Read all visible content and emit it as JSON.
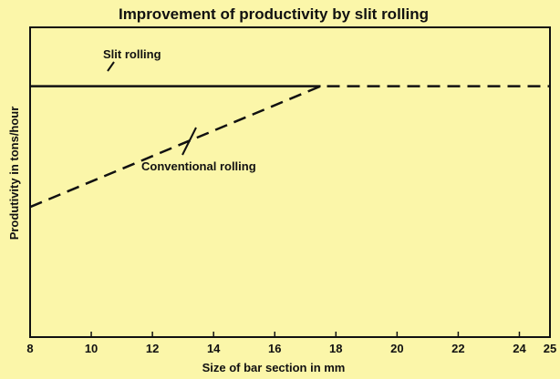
{
  "chart_data": {
    "type": "line",
    "title": "Improvement of productivity by slit rolling",
    "xlabel": "Size of bar section in mm",
    "ylabel": "Produtivity in tons/hour",
    "xlim": [
      8,
      25
    ],
    "ylim": [
      0,
      1
    ],
    "x_ticks": [
      8,
      10,
      12,
      14,
      16,
      18,
      20,
      22,
      24,
      25
    ],
    "y_ticks": [],
    "grid": false,
    "legend": "none",
    "series": [
      {
        "name": "Slit rolling",
        "style": "solid",
        "color": "#111111",
        "points": [
          [
            8,
            0.81
          ],
          [
            17.5,
            0.81
          ]
        ]
      },
      {
        "name": "Conventional rolling",
        "style": "dashed",
        "color": "#111111",
        "points": [
          [
            8,
            0.42
          ],
          [
            17.5,
            0.81
          ],
          [
            25,
            0.81
          ]
        ]
      }
    ]
  }
}
